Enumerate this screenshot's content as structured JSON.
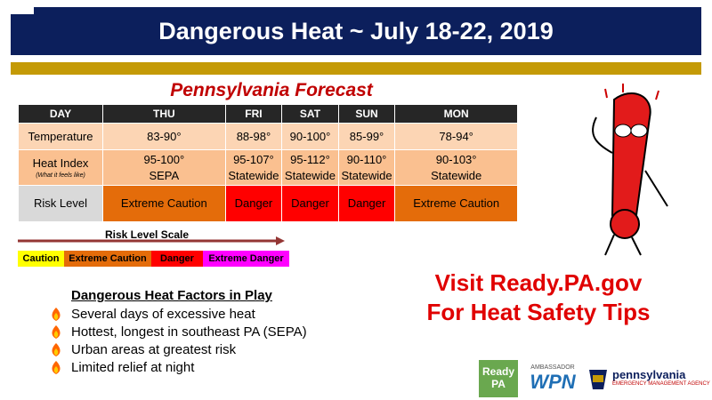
{
  "header": {
    "title": "Dangerous Heat ~ July 18-22, 2019"
  },
  "forecast": {
    "title": "Pennsylvania Forecast",
    "columns": [
      "DAY",
      "THU",
      "FRI",
      "SAT",
      "SUN",
      "MON"
    ],
    "temperature": {
      "label": "Temperature",
      "cells": [
        "83-90°",
        "88-98°",
        "90-100°",
        "85-99°",
        "78-94°"
      ]
    },
    "heat_index": {
      "label": "Heat Index",
      "note": "(What it feels like)",
      "cells": [
        [
          "95-100°",
          "SEPA"
        ],
        [
          "95-107°",
          "Statewide"
        ],
        [
          "95-112°",
          "Statewide"
        ],
        [
          "90-110°",
          "Statewide"
        ],
        [
          "90-103°",
          "Statewide"
        ]
      ]
    },
    "risk": {
      "label": "Risk Level",
      "cells": [
        "Extreme Caution",
        "Danger",
        "Danger",
        "Danger",
        "Extreme Caution"
      ]
    }
  },
  "scale": {
    "title": "Risk Level Scale",
    "levels": [
      "Caution",
      "Extreme Caution",
      "Danger",
      "Extreme Danger"
    ]
  },
  "factors": {
    "title": "Dangerous Heat Factors in Play",
    "items": [
      "Several days of excessive  heat",
      "Hottest, longest in southeast PA (SEPA)",
      "Urban areas at greatest risk",
      "Limited relief at night"
    ]
  },
  "call_to_action": [
    "Visit Ready.PA.gov",
    "For Heat Safety Tips"
  ],
  "logos": {
    "ready": [
      "Ready",
      "PA"
    ],
    "wpn": [
      "AMBASSADOR",
      "WPN"
    ],
    "pema": [
      "pennsylvania",
      "EMERGENCY MANAGEMENT AGENCY"
    ]
  }
}
